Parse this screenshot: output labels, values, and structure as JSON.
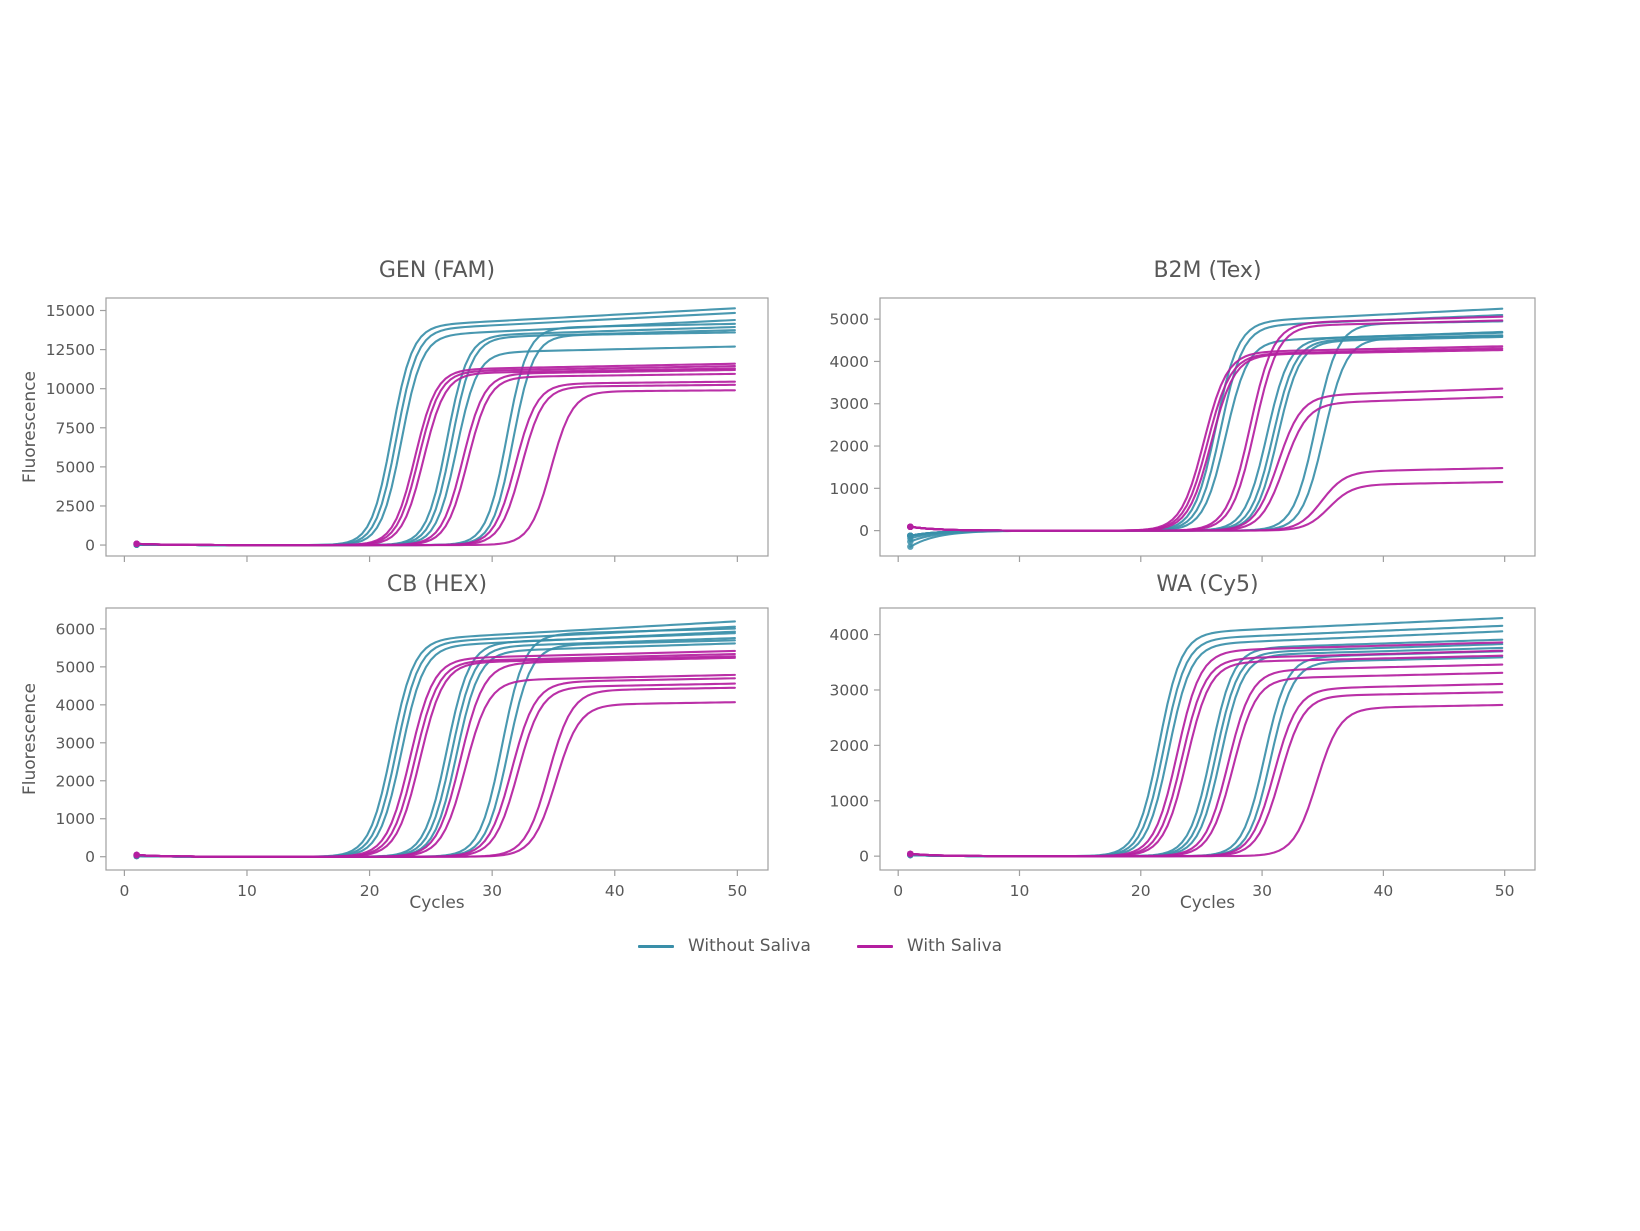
{
  "colors": {
    "without_saliva": "#3a8fa9",
    "with_saliva": "#b41ea0",
    "spine": "#9f9f9f",
    "text": "#585858"
  },
  "legend": {
    "items": [
      {
        "label": "Without Saliva",
        "color_key": "without_saliva"
      },
      {
        "label": "With Saliva",
        "color_key": "with_saliva"
      }
    ]
  },
  "chart_data": [
    {
      "type": "line",
      "title": "GEN (FAM)",
      "xlabel": "Cycles",
      "ylabel": "Fluorescence",
      "x_range": [
        1,
        50
      ],
      "xlim": [
        -1.5,
        52.5
      ],
      "ylim": [
        -700,
        15800
      ],
      "xticks": [
        0,
        10,
        20,
        30,
        40,
        50
      ],
      "yticks": [
        0,
        2500,
        5000,
        7500,
        10000,
        12500,
        15000
      ],
      "show_x_tick_labels": false,
      "show_xlabel": false,
      "show_ylabel": true,
      "series": [
        {
          "name": "Without Saliva",
          "color_key": "without_saliva",
          "k": 1.2,
          "start": 25,
          "curves": [
            {
              "ct": 21.8,
              "end": 15150,
              "drift": 42
            },
            {
              "ct": 22.2,
              "end": 14850,
              "drift": 40
            },
            {
              "ct": 22.6,
              "end": 14400,
              "drift": 38
            },
            {
              "ct": 26.3,
              "end": 13950,
              "drift": 25
            },
            {
              "ct": 26.7,
              "end": 13750,
              "drift": 22
            },
            {
              "ct": 27.1,
              "end": 12700,
              "drift": 18
            },
            {
              "ct": 31.2,
              "end": 14150,
              "drift": 15
            },
            {
              "ct": 31.7,
              "end": 13600,
              "drift": 12
            }
          ]
        },
        {
          "name": "With Saliva",
          "color_key": "with_saliva",
          "k": 1.15,
          "start": 80,
          "curves": [
            {
              "ct": 23.7,
              "end": 11600,
              "drift": 15
            },
            {
              "ct": 24.0,
              "end": 11450,
              "drift": 14
            },
            {
              "ct": 24.4,
              "end": 11300,
              "drift": 13
            },
            {
              "ct": 27.6,
              "end": 11200,
              "drift": 12
            },
            {
              "ct": 28.0,
              "end": 10950,
              "drift": 10
            },
            {
              "ct": 31.9,
              "end": 10450,
              "drift": 8
            },
            {
              "ct": 32.4,
              "end": 10250,
              "drift": 8
            },
            {
              "ct": 34.8,
              "end": 9900,
              "drift": 6
            }
          ]
        }
      ]
    },
    {
      "type": "line",
      "title": "B2M (Tex)",
      "xlabel": "Cycles",
      "ylabel": "Fluorescence",
      "x_range": [
        1,
        50
      ],
      "xlim": [
        -1.5,
        52.5
      ],
      "ylim": [
        -600,
        5500
      ],
      "xticks": [
        0,
        10,
        20,
        30,
        40,
        50
      ],
      "yticks": [
        0,
        1000,
        2000,
        3000,
        4000,
        5000
      ],
      "show_x_tick_labels": false,
      "show_xlabel": false,
      "show_ylabel": false,
      "series": [
        {
          "name": "Without Saliva",
          "color_key": "without_saliva",
          "k": 1.1,
          "start": -120,
          "curves": [
            {
              "ct": 26.2,
              "end": 5250,
              "drift": 14,
              "start": -380
            },
            {
              "ct": 26.6,
              "end": 5100,
              "drift": 12,
              "start": -260
            },
            {
              "ct": 27.0,
              "end": 4700,
              "drift": 10,
              "start": -180
            },
            {
              "ct": 30.4,
              "end": 4680,
              "drift": 8
            },
            {
              "ct": 30.9,
              "end": 4620,
              "drift": 7
            },
            {
              "ct": 31.3,
              "end": 4580,
              "drift": 6
            },
            {
              "ct": 34.4,
              "end": 4950,
              "drift": 5
            },
            {
              "ct": 35.1,
              "end": 4600,
              "drift": 5
            }
          ]
        },
        {
          "name": "With Saliva",
          "color_key": "with_saliva",
          "k": 1.05,
          "start": 90,
          "curves": [
            {
              "ct": 25.2,
              "end": 4360,
              "drift": 6
            },
            {
              "ct": 25.5,
              "end": 4310,
              "drift": 6
            },
            {
              "ct": 25.8,
              "end": 4270,
              "drift": 5
            },
            {
              "ct": 29.0,
              "end": 5060,
              "drift": 8
            },
            {
              "ct": 29.4,
              "end": 4970,
              "drift": 7
            },
            {
              "ct": 31.3,
              "end": 3360,
              "drift": 10
            },
            {
              "ct": 31.8,
              "end": 3160,
              "drift": 9
            },
            {
              "ct": 34.9,
              "end": 1480,
              "drift": 6
            },
            {
              "ct": 35.5,
              "end": 1150,
              "drift": 5
            }
          ]
        }
      ]
    },
    {
      "type": "line",
      "title": "CB (HEX)",
      "xlabel": "Cycles",
      "ylabel": "Fluorescence",
      "x_range": [
        1,
        50
      ],
      "xlim": [
        -1.5,
        52.5
      ],
      "ylim": [
        -350,
        6550
      ],
      "xticks": [
        0,
        10,
        20,
        30,
        40,
        50
      ],
      "yticks": [
        0,
        1000,
        2000,
        3000,
        4000,
        5000,
        6000
      ],
      "show_x_tick_labels": true,
      "show_xlabel": true,
      "show_ylabel": true,
      "series": [
        {
          "name": "Without Saliva",
          "color_key": "without_saliva",
          "k": 1.1,
          "start": 20,
          "curves": [
            {
              "ct": 21.8,
              "end": 6200,
              "drift": 18
            },
            {
              "ct": 22.2,
              "end": 6060,
              "drift": 16
            },
            {
              "ct": 22.6,
              "end": 5930,
              "drift": 15
            },
            {
              "ct": 26.3,
              "end": 5890,
              "drift": 12
            },
            {
              "ct": 26.7,
              "end": 5760,
              "drift": 11
            },
            {
              "ct": 27.1,
              "end": 5620,
              "drift": 10
            },
            {
              "ct": 30.8,
              "end": 6010,
              "drift": 9
            },
            {
              "ct": 31.3,
              "end": 5700,
              "drift": 8
            }
          ]
        },
        {
          "name": "With Saliva",
          "color_key": "with_saliva",
          "k": 1.05,
          "start": 45,
          "curves": [
            {
              "ct": 23.3,
              "end": 5420,
              "drift": 8
            },
            {
              "ct": 23.7,
              "end": 5340,
              "drift": 8
            },
            {
              "ct": 24.1,
              "end": 5280,
              "drift": 7
            },
            {
              "ct": 27.4,
              "end": 5240,
              "drift": 7
            },
            {
              "ct": 27.8,
              "end": 4790,
              "drift": 7
            },
            {
              "ct": 31.6,
              "end": 4700,
              "drift": 6
            },
            {
              "ct": 32.1,
              "end": 4560,
              "drift": 6
            },
            {
              "ct": 34.6,
              "end": 4450,
              "drift": 5
            },
            {
              "ct": 35.2,
              "end": 4070,
              "drift": 5
            }
          ]
        }
      ]
    },
    {
      "type": "line",
      "title": "WA (Cy5)",
      "xlabel": "Cycles",
      "ylabel": "Fluorescence",
      "x_range": [
        1,
        50
      ],
      "xlim": [
        -1.5,
        52.5
      ],
      "ylim": [
        -250,
        4480
      ],
      "xticks": [
        0,
        10,
        20,
        30,
        40,
        50
      ],
      "yticks": [
        0,
        1000,
        2000,
        3000,
        4000
      ],
      "show_x_tick_labels": true,
      "show_xlabel": true,
      "show_ylabel": false,
      "series": [
        {
          "name": "Without Saliva",
          "color_key": "without_saliva",
          "k": 1.1,
          "start": 20,
          "curves": [
            {
              "ct": 21.5,
              "end": 4300,
              "drift": 10
            },
            {
              "ct": 21.9,
              "end": 4160,
              "drift": 9
            },
            {
              "ct": 22.3,
              "end": 4060,
              "drift": 9
            },
            {
              "ct": 25.8,
              "end": 3910,
              "drift": 7
            },
            {
              "ct": 26.2,
              "end": 3830,
              "drift": 7
            },
            {
              "ct": 26.6,
              "end": 3760,
              "drift": 6
            },
            {
              "ct": 30.2,
              "end": 3700,
              "drift": 6
            },
            {
              "ct": 30.7,
              "end": 3590,
              "drift": 5
            }
          ]
        },
        {
          "name": "With Saliva",
          "color_key": "with_saliva",
          "k": 1.05,
          "start": 40,
          "curves": [
            {
              "ct": 23.0,
              "end": 3860,
              "drift": 6
            },
            {
              "ct": 23.4,
              "end": 3710,
              "drift": 6
            },
            {
              "ct": 23.8,
              "end": 3620,
              "drift": 5
            },
            {
              "ct": 27.2,
              "end": 3460,
              "drift": 5
            },
            {
              "ct": 27.6,
              "end": 3310,
              "drift": 5
            },
            {
              "ct": 31.0,
              "end": 3110,
              "drift": 5
            },
            {
              "ct": 31.5,
              "end": 2960,
              "drift": 4
            },
            {
              "ct": 34.5,
              "end": 2730,
              "drift": 4
            }
          ]
        }
      ]
    }
  ]
}
